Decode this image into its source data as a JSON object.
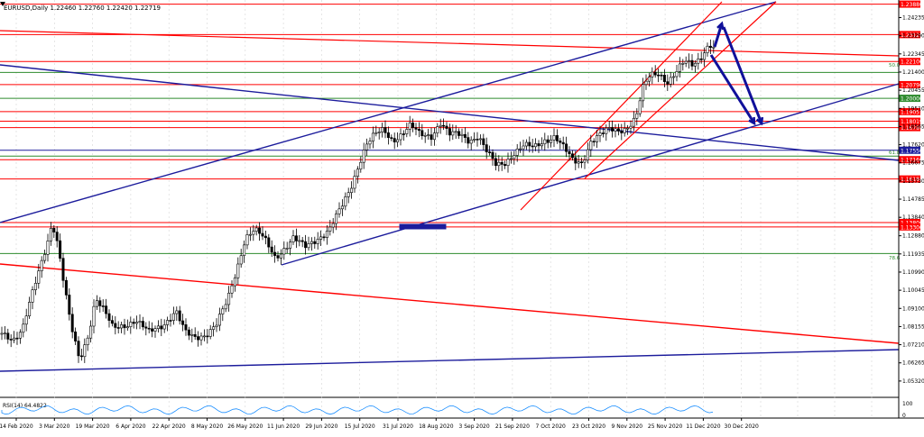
{
  "header": {
    "symbol_line": "EURUSD,Daily  1.22460  1.22760  1.22420  1.22719"
  },
  "colors": {
    "background": "#ffffff",
    "grid": "#d6d6d6",
    "candle_up": "#ffffff",
    "candle_down": "#000000",
    "candle_outline": "#000000",
    "red_line": "#ff0000",
    "blue_line": "#1c1c9c",
    "green_line": "#2e8b2e",
    "arrow": "#10109a",
    "rsi_line": "#1e90ff",
    "axis_text": "#000000"
  },
  "chart_data": {
    "type": "candlestick",
    "symbol": "EURUSD",
    "timeframe": "Daily",
    "last_ohlc": {
      "open": 1.2246,
      "high": 1.2276,
      "low": 1.2242,
      "close": 1.22719
    },
    "ylim": [
      1.0447,
      1.2515
    ],
    "y_ticks": [
      "1.24235",
      "1.23290",
      "1.22345",
      "1.21400",
      "1.20455",
      "1.19510",
      "1.18565",
      "1.17620",
      "1.16675",
      "1.15730",
      "1.14785",
      "1.13840",
      "1.12880",
      "1.11935",
      "1.10990",
      "1.10045",
      "1.09100",
      "1.08155",
      "1.07210",
      "1.06265",
      "1.05320"
    ],
    "x_ticks": [
      "14 Feb 2020",
      "3 Mar 2020",
      "19 Mar 2020",
      "6 Apr 2020",
      "22 Apr 2020",
      "8 May 2020",
      "26 May 2020",
      "11 Jun 2020",
      "29 Jun 2020",
      "15 Jul 2020",
      "31 Jul 2020",
      "18 Aug 2020",
      "3 Sep 2020",
      "21 Sep 2020",
      "7 Oct 2020",
      "23 Oct 2020",
      "9 Nov 2020",
      "25 Nov 2020",
      "11 Dec 2020",
      "30 Dec 2020"
    ],
    "horizontal_levels": [
      {
        "value": 1.24935,
        "label": "1.23880",
        "color": "#ff0000"
      },
      {
        "value": 1.2335,
        "label": "1.23120",
        "color": "#ff0000"
      },
      {
        "value": 1.2195,
        "label": "1.22100",
        "color": "#ff0000"
      },
      {
        "value": 1.2138,
        "label": "",
        "color": "#2e8b2e"
      },
      {
        "value": 1.20745,
        "label": "1.20790",
        "color": "#ff0000"
      },
      {
        "value": 1.20035,
        "label": "1.20000",
        "color": "#2e8b2e"
      },
      {
        "value": 1.1934,
        "label": "1.19051",
        "color": "#ff0000"
      },
      {
        "value": 1.1884,
        "label": "1.18019",
        "color": "#ff0000"
      },
      {
        "value": 1.1851,
        "label": "1.16780",
        "color": "#ff0000"
      },
      {
        "value": 1.1733,
        "label": "1.17550",
        "color": "#1c1c9c"
      },
      {
        "value": 1.17025,
        "label": "",
        "color": "#2e8b2e"
      },
      {
        "value": 1.1684,
        "label": "1.17160",
        "color": "#ff0000"
      },
      {
        "value": 1.15835,
        "label": "1.16184",
        "color": "#ff0000"
      },
      {
        "value": 1.1357,
        "label": "1.13800",
        "color": "#ff0000"
      },
      {
        "value": 1.1334,
        "label": "1.13300",
        "color": "#ff0000"
      },
      {
        "value": 1.11955,
        "label": "",
        "color": "#2e8b2e"
      }
    ],
    "fib_labels": [
      "50.0",
      "61.8",
      "78.6"
    ],
    "rsi": {
      "label": "RSI(14) 64.4822",
      "upper": "100",
      "lower": "0"
    },
    "grid": true
  }
}
